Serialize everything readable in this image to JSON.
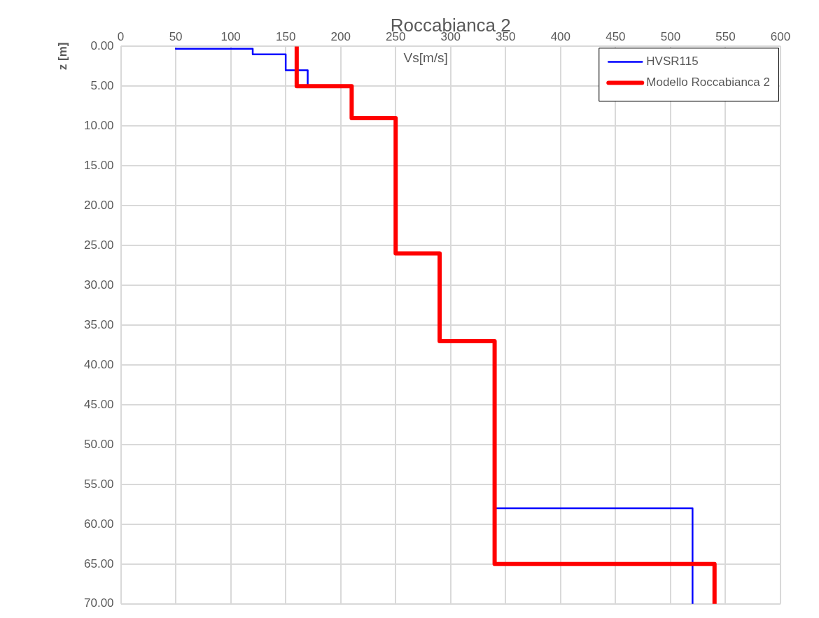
{
  "chart_data": {
    "type": "line",
    "title": "Roccabianca 2",
    "xlabel": "Vs[m/s]",
    "ylabel": "z [m]",
    "xlim": [
      0,
      600
    ],
    "xticks": [
      0,
      50,
      100,
      150,
      200,
      250,
      300,
      350,
      400,
      450,
      500,
      550,
      600
    ],
    "ylim": [
      70,
      0
    ],
    "yticks": [
      {
        "value": 0,
        "label": "0.00"
      },
      {
        "value": 5,
        "label": "5.00"
      },
      {
        "value": 10,
        "label": "10.00"
      },
      {
        "value": 15,
        "label": "15.00"
      },
      {
        "value": 20,
        "label": "20.00"
      },
      {
        "value": 25,
        "label": "25.00"
      },
      {
        "value": 30,
        "label": "30.00"
      },
      {
        "value": 35,
        "label": "35.00"
      },
      {
        "value": 40,
        "label": "40.00"
      },
      {
        "value": 45,
        "label": "45.00"
      },
      {
        "value": 50,
        "label": "50.00"
      },
      {
        "value": 55,
        "label": "55.00"
      },
      {
        "value": 60,
        "label": "60.00"
      },
      {
        "value": 65,
        "label": "65.00"
      },
      {
        "value": 70,
        "label": "70.00"
      }
    ],
    "grid": true,
    "legend": "top right",
    "marker": "none",
    "line_style": "solid",
    "series": [
      {
        "name": "HVSR115",
        "color": "#0000ff",
        "x": [
          50,
          120,
          120,
          150,
          150,
          170,
          170,
          null,
          340,
          520,
          520
        ],
        "values": [
          0.3,
          0.3,
          1,
          1,
          3,
          3,
          5,
          null,
          58,
          58,
          70
        ]
      },
      {
        "name": "Modello Roccabianca 2",
        "color": "#ff0000",
        "x": [
          160,
          160,
          210,
          210,
          250,
          250,
          290,
          290,
          340,
          340,
          540,
          540
        ],
        "values": [
          0,
          5,
          5,
          9,
          9,
          26,
          26,
          37,
          37,
          65,
          65,
          70
        ]
      }
    ]
  }
}
